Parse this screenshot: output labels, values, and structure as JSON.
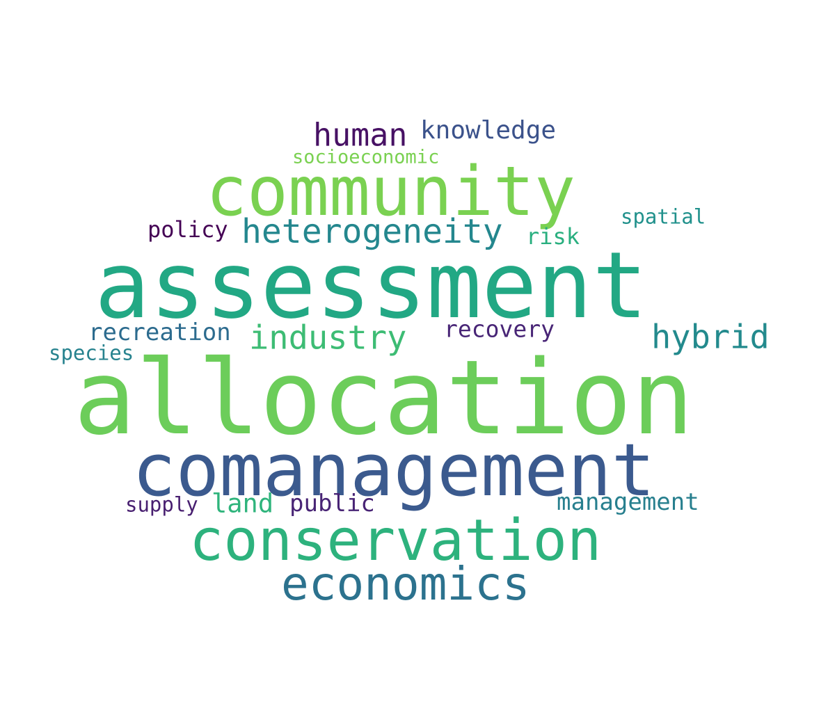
{
  "words": [
    {
      "text": "allocation",
      "color": "#6ccd5a"
    },
    {
      "text": "assessment",
      "color": "#22a884"
    },
    {
      "text": "comanagement",
      "color": "#3b5a8e"
    },
    {
      "text": "community",
      "color": "#7ad151"
    },
    {
      "text": "conservation",
      "color": "#2db27d"
    },
    {
      "text": "economics",
      "color": "#2c728e"
    },
    {
      "text": "heterogeneity",
      "color": "#24878e"
    },
    {
      "text": "industry",
      "color": "#3dbc74"
    },
    {
      "text": "hybrid",
      "color": "#238a8d"
    },
    {
      "text": "human",
      "color": "#471164"
    },
    {
      "text": "knowledge",
      "color": "#3b528b"
    },
    {
      "text": "recreation",
      "color": "#2c6b8e"
    },
    {
      "text": "land",
      "color": "#2fb47c"
    },
    {
      "text": "public",
      "color": "#482475"
    },
    {
      "text": "management",
      "color": "#277f8e"
    },
    {
      "text": "recovery",
      "color": "#482576"
    },
    {
      "text": "policy",
      "color": "#440154"
    },
    {
      "text": "risk",
      "color": "#29af7f"
    },
    {
      "text": "socioeconomic",
      "color": "#7ad151"
    },
    {
      "text": "spatial",
      "color": "#21918c"
    },
    {
      "text": "species",
      "color": "#26828e"
    },
    {
      "text": "supply",
      "color": "#481f70"
    }
  ]
}
